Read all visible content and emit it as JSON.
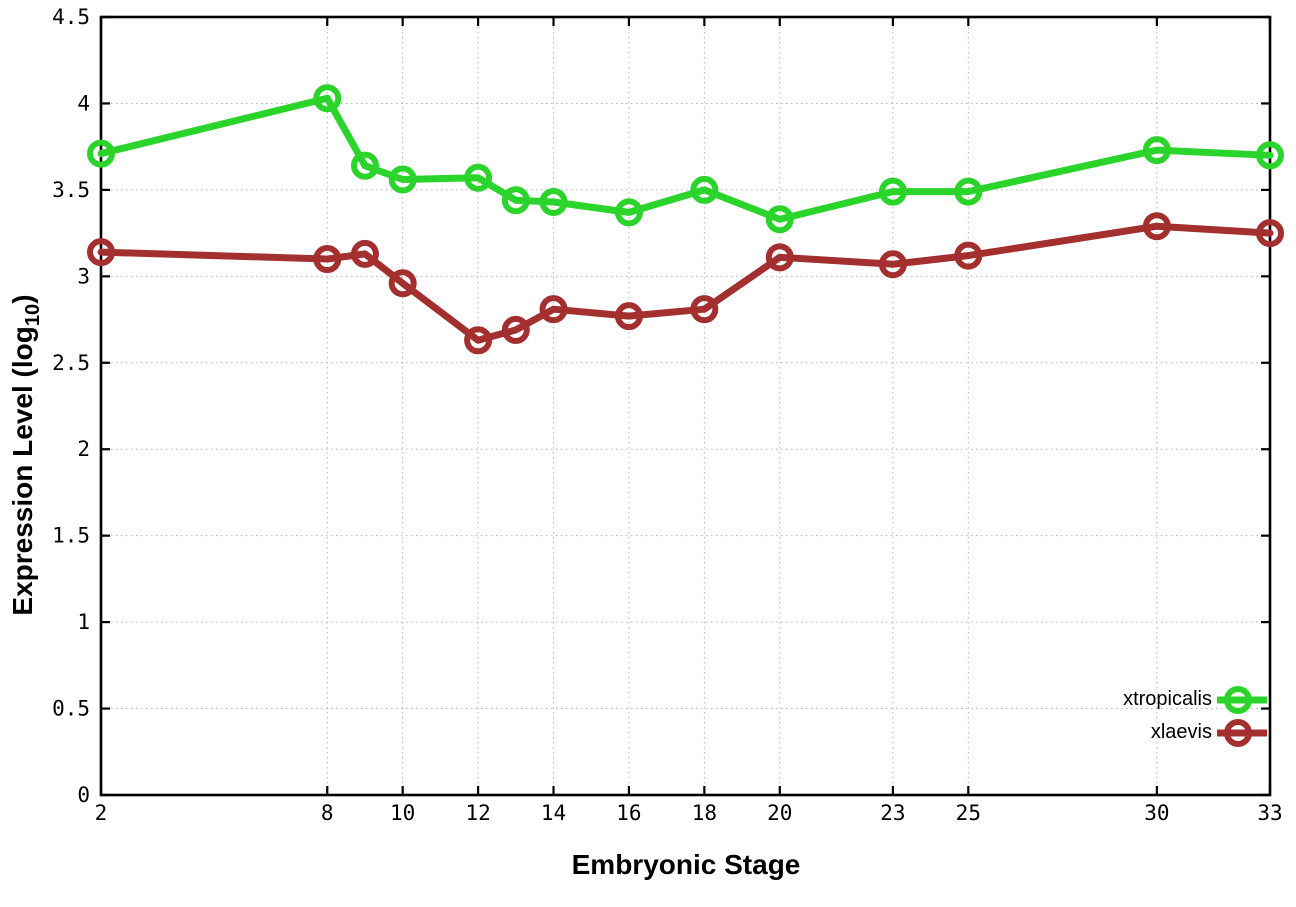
{
  "chart_data": {
    "type": "line",
    "title": "",
    "xlabel": "Embryonic Stage",
    "ylabel_main": "Expression Level (log",
    "ylabel_sub": "10",
    "ylabel_close": ")",
    "xlim": [
      2,
      33
    ],
    "ylim": [
      0,
      4.5
    ],
    "x_ticks": [
      2,
      8,
      10,
      12,
      14,
      16,
      18,
      20,
      23,
      25,
      30,
      33
    ],
    "y_ticks": [
      0,
      0.5,
      1,
      1.5,
      2,
      2.5,
      3,
      3.5,
      4,
      4.5
    ],
    "grid": true,
    "legend_position": "inside-bottom-right",
    "marker": "open-circle",
    "x": [
      2,
      8,
      9,
      10,
      12,
      13,
      14,
      16,
      18,
      20,
      23,
      25,
      30,
      33
    ],
    "series": [
      {
        "name": "xtropicalis",
        "color": "#2bd42b",
        "values": [
          3.71,
          4.03,
          3.64,
          3.56,
          3.57,
          3.44,
          3.43,
          3.37,
          3.5,
          3.33,
          3.49,
          3.49,
          3.73,
          3.7
        ]
      },
      {
        "name": "xlaevis",
        "color": "#a42f2f",
        "values": [
          3.14,
          3.1,
          3.13,
          2.96,
          2.63,
          2.69,
          2.81,
          2.77,
          2.81,
          3.11,
          3.07,
          3.12,
          3.29,
          3.25
        ]
      }
    ]
  }
}
